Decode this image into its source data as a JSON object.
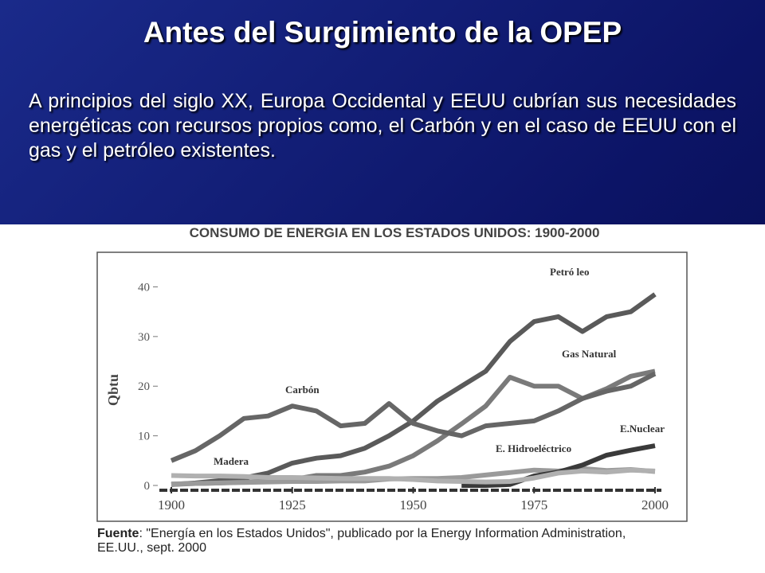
{
  "slide": {
    "title": "Antes del Surgimiento de la OPEP",
    "body": "A principios del siglo XX, Europa Occidental y EEUU cubrían sus necesidades energéticas con recursos propios como, el Carbón y en el caso de EEUU con el gas y el petróleo existentes.",
    "source_label": "Fuente",
    "source_text": ": \"Energía en los Estados Unidos\", publicado por la Energy Information Administration, EE.UU., sept. 2000"
  },
  "chart_data": {
    "type": "line",
    "title": "CONSUMO DE ENERGIA EN LOS ESTADOS UNIDOS: 1900-2000",
    "y_label": "Qbtu",
    "x": [
      1900,
      1905,
      1910,
      1915,
      1920,
      1925,
      1930,
      1935,
      1940,
      1945,
      1950,
      1955,
      1960,
      1965,
      1970,
      1975,
      1980,
      1985,
      1990,
      1995,
      2000
    ],
    "xlim": [
      1900,
      2000
    ],
    "xticks": [
      1900,
      1925,
      1950,
      1975,
      2000
    ],
    "ylim": [
      0,
      42
    ],
    "yticks": [
      0,
      10,
      20,
      30,
      40
    ],
    "series": [
      {
        "name": "Petró leo",
        "color": "#5a5a5a",
        "values": [
          0.2,
          0.5,
          1,
          1.5,
          2.5,
          4.5,
          5.5,
          6,
          7.5,
          10,
          13,
          17,
          20,
          23,
          29,
          33,
          34,
          31,
          34,
          35,
          38.5
        ]
      },
      {
        "name": "Gas Natural",
        "color": "#7a7a7a",
        "values": [
          0.2,
          0.4,
          0.5,
          0.7,
          0.8,
          1.2,
          2,
          2,
          2.7,
          3.9,
          6,
          9,
          12.4,
          16,
          21.8,
          20,
          20,
          17.5,
          19.5,
          22,
          23
        ]
      },
      {
        "name": "Carbón",
        "color": "#666666",
        "values": [
          5,
          7,
          10,
          13.5,
          14,
          16,
          15,
          12,
          12.5,
          16.5,
          12.5,
          11,
          10,
          12,
          12.5,
          13,
          15,
          17.5,
          19,
          20,
          22.5
        ]
      },
      {
        "name": "E. Hidroeléctrico",
        "color": "#9a9a9a",
        "values": [
          0.3,
          0.4,
          0.5,
          0.6,
          0.7,
          0.8,
          0.8,
          0.9,
          0.9,
          1.3,
          1.4,
          1.4,
          1.6,
          2.1,
          2.6,
          3.1,
          2.9,
          3.4,
          3,
          3.2,
          2.8
        ]
      },
      {
        "name": "E.Nuclear",
        "color": "#3a3a3a",
        "values": [
          null,
          null,
          null,
          null,
          null,
          null,
          null,
          null,
          null,
          null,
          null,
          null,
          0,
          0,
          0.2,
          1.9,
          2.7,
          4.1,
          6.1,
          7.1,
          8
        ]
      },
      {
        "name": "Madera",
        "color": "#b0b0b0",
        "values": [
          2,
          1.9,
          1.9,
          1.8,
          1.6,
          1.6,
          1.5,
          1.4,
          1.4,
          1.4,
          1.2,
          0.9,
          0.8,
          0.7,
          0.8,
          1.5,
          2.5,
          2.9,
          2.7,
          3.1,
          2.9
        ]
      }
    ]
  }
}
